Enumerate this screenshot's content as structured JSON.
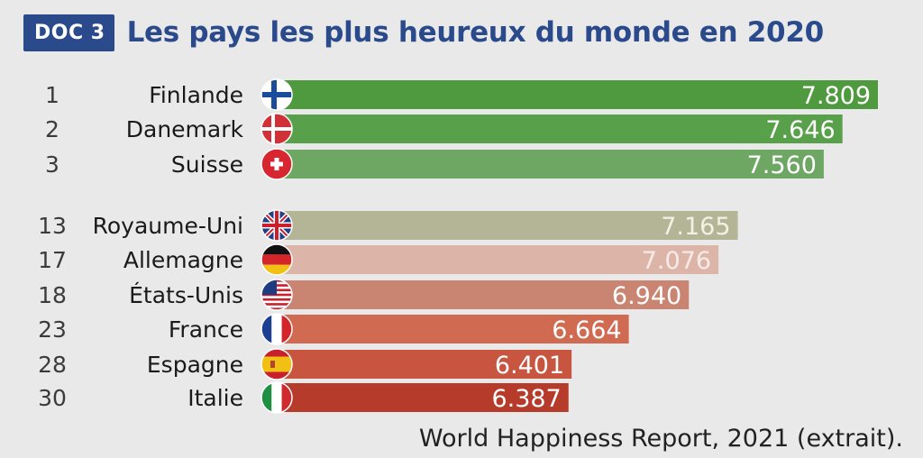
{
  "header": {
    "badge": "DOC 3",
    "title": "Les pays les plus heureux du monde en 2020"
  },
  "source": "World Happiness Report, 2021 (extrait).",
  "chart_data": {
    "type": "bar",
    "orientation": "horizontal",
    "title": "Les pays les plus heureux du monde en 2020",
    "categories": [
      "Finlande",
      "Danemark",
      "Suisse",
      "Royaume-Uni",
      "Allemagne",
      "États-Unis",
      "France",
      "Espagne",
      "Italie"
    ],
    "ranks": [
      "1",
      "2",
      "3",
      "13",
      "17",
      "18",
      "23",
      "28",
      "30"
    ],
    "values": [
      7.809,
      7.646,
      7.56,
      7.165,
      7.076,
      6.94,
      6.664,
      6.401,
      6.387
    ],
    "value_labels": [
      "7.809",
      "7.646",
      "7.560",
      "7.165",
      "7.076",
      "6.940",
      "6.664",
      "6.401",
      "6.387"
    ],
    "flags": [
      "finland-flag-icon",
      "denmark-flag-icon",
      "switzerland-flag-icon",
      "uk-flag-icon",
      "germany-flag-icon",
      "usa-flag-icon",
      "france-flag-icon",
      "spain-flag-icon",
      "italy-flag-icon"
    ],
    "bar_colors": [
      "#4f9a3f",
      "#58a14a",
      "#6ea764",
      "#b3b596",
      "#ddb5a8",
      "#c98571",
      "#d06b52",
      "#c8553f",
      "#b73b2a"
    ],
    "label_colors": [
      "#ffffff",
      "#ffffff",
      "#ffffff",
      "#f3f0e4",
      "#f6ebe6",
      "#ffffff",
      "#ffffff",
      "#ffffff",
      "#ffffff"
    ],
    "grid": false,
    "legend": "none"
  }
}
